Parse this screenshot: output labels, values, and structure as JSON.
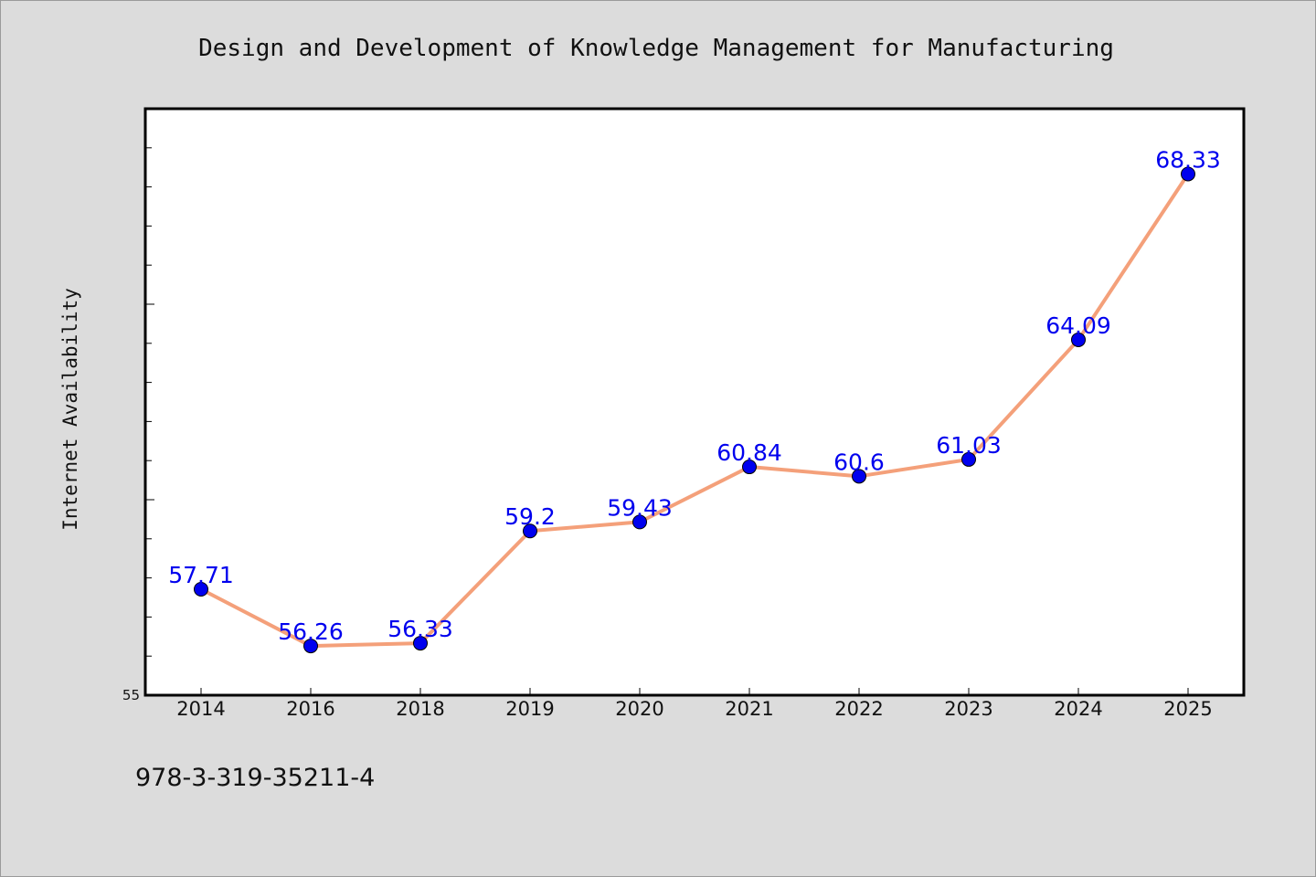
{
  "chart_data": {
    "type": "line",
    "title": "Design and Development of Knowledge Management for Manufacturing",
    "ylabel": "Internet Availability",
    "xlabel": "",
    "categories": [
      "2014",
      "2016",
      "2018",
      "2019",
      "2020",
      "2021",
      "2022",
      "2023",
      "2024",
      "2025"
    ],
    "series": [
      {
        "values": [
          57.71,
          56.26,
          56.33,
          59.2,
          59.43,
          60.84,
          60.6,
          61.03,
          64.09,
          68.33
        ],
        "labels": [
          "57.71",
          "56.26",
          "56.33",
          "59.2",
          "59.43",
          "60.84",
          "60.6",
          "61.03",
          "64.09",
          "68.33"
        ],
        "line_color": "#f4a07a",
        "marker_color": "#0000ee"
      }
    ],
    "ylim": [
      55,
      70
    ],
    "y_tick_labels": [
      "55"
    ],
    "grid": false,
    "legend": "none"
  },
  "footer": {
    "isbn": "978-3-319-35211-4"
  }
}
